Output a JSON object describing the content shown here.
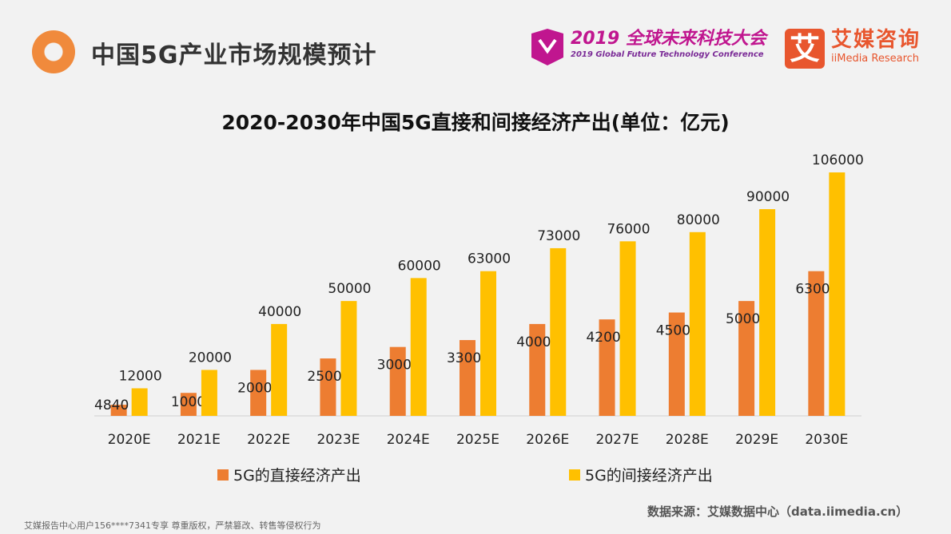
{
  "header": {
    "title": "中国5G产业市场规模预计",
    "conference_cn": "2019 全球未来科技大会",
    "conference_en": "2019 Global Future Technology Conference",
    "brand_logo_char": "艾",
    "brand_cn": "艾媒咨询",
    "brand_en": "iiMedia Research"
  },
  "chart_data": {
    "type": "bar",
    "title": "2020-2030年中国5G直接和间接经济产出(单位：亿元)",
    "categories": [
      "2020E",
      "2021E",
      "2022E",
      "2023E",
      "2024E",
      "2025E",
      "2026E",
      "2027E",
      "2028E",
      "2029E",
      "2030E"
    ],
    "series": [
      {
        "name": "5G的直接经济产出",
        "color": "#ed7d31",
        "values": [
          4840,
          10000,
          20000,
          25000,
          30000,
          33000,
          40000,
          42000,
          45000,
          50000,
          63000
        ]
      },
      {
        "name": "5G的间接经济产出",
        "color": "#ffc000",
        "values": [
          12000,
          20000,
          40000,
          50000,
          60000,
          63000,
          73000,
          76000,
          80000,
          90000,
          106000
        ]
      }
    ],
    "ylim": [
      0,
      106000
    ],
    "grid": false,
    "legend_position": "bottom"
  },
  "footer": {
    "copyright": "艾媒报告中心用户156****7341专享 尊重版权，严禁篡改、转售等侵权行为",
    "source": "数据来源：艾媒数据中心（data.iimedia.cn）"
  }
}
